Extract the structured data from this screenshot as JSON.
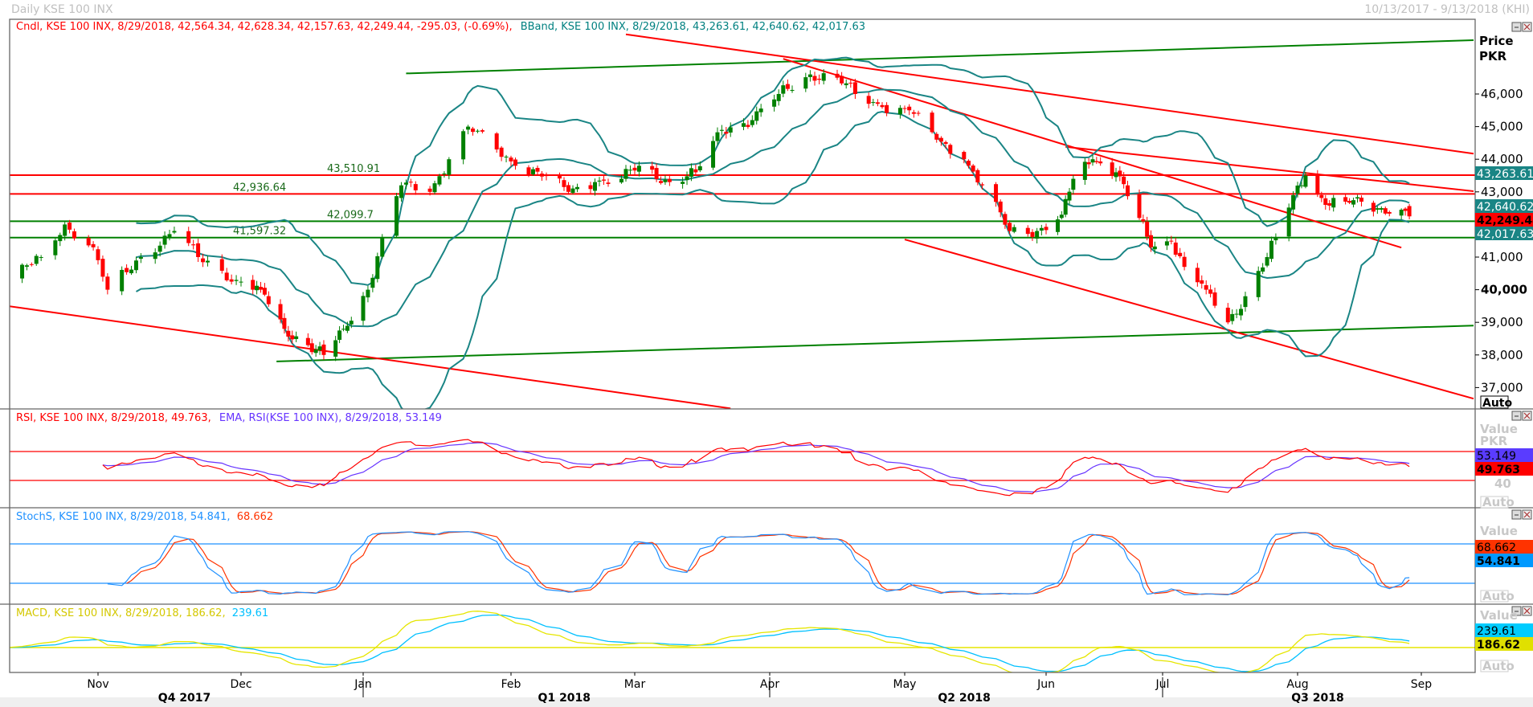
{
  "header": {
    "title": "Daily KSE 100 INX",
    "range": "10/13/2017 - 9/13/2018 (KHI)"
  },
  "legends": {
    "price": {
      "candle": "Cndl, KSE 100 INX, 8/29/2018, 42,564.34, 42,628.34, 42,157.63, 42,249.44, -295.03, (-0.69%),",
      "bband": "BBand, KSE 100 INX, 8/29/2018, 43,263.61, 42,640.62, 42,017.63"
    },
    "rsi": {
      "rsi": "RSI, KSE 100 INX, 8/29/2018, 49.763,",
      "ema": "EMA, RSI(KSE 100 INX), 8/29/2018, 53.149"
    },
    "stoch": {
      "k": "StochS, KSE 100 INX, 8/29/2018, 54.841,",
      "d": "68.662"
    },
    "macd": {
      "macd": "MACD, KSE 100 INX, 8/29/2018, 186.62,",
      "signal": "239.61"
    }
  },
  "axes": {
    "price_label": "Price",
    "currency": "PKR",
    "value_label": "Value",
    "value_currency": "PKR",
    "rsi_tick": "40",
    "auto": "Auto",
    "price_ticks": [
      {
        "value": 46000,
        "label": "46,000"
      },
      {
        "value": 45000,
        "label": "45,000"
      },
      {
        "value": 44000,
        "label": "44,000"
      },
      {
        "value": 43000,
        "label": "43,000"
      },
      {
        "value": 41000,
        "label": "41,000"
      },
      {
        "value": 40000,
        "label": "40,000",
        "bold": true
      },
      {
        "value": 39000,
        "label": "39,000"
      },
      {
        "value": 38000,
        "label": "38,000"
      },
      {
        "value": 37000,
        "label": "37,000"
      }
    ],
    "months": [
      {
        "date": "2017-11-01",
        "label": "Nov"
      },
      {
        "date": "2017-12-01",
        "label": "Dec"
      },
      {
        "date": "2018-01-01",
        "label": "Jan"
      },
      {
        "date": "2018-02-01",
        "label": "Feb"
      },
      {
        "date": "2018-03-01",
        "label": "Mar"
      },
      {
        "date": "2018-04-01",
        "label": "Apr"
      },
      {
        "date": "2018-05-01",
        "label": "May"
      },
      {
        "date": "2018-06-01",
        "label": "Jun"
      },
      {
        "date": "2018-07-01",
        "label": "Jul"
      },
      {
        "date": "2018-08-01",
        "label": "Aug"
      },
      {
        "date": "2018-09-01",
        "label": "Sep"
      }
    ],
    "quarters": [
      {
        "label": "Q4 2017",
        "start": "2017-10-01",
        "end": "2017-12-31"
      },
      {
        "label": "Q1 2018",
        "start": "2018-01-01",
        "end": "2018-03-31"
      },
      {
        "label": "Q2 2018",
        "start": "2018-04-01",
        "end": "2018-06-30"
      },
      {
        "label": "Q3 2018",
        "start": "2018-07-01",
        "end": "2018-09-13"
      }
    ]
  },
  "badges": {
    "bb_upper": "43,263.61",
    "bb_mid": "42,640.62",
    "last": "42,249.44",
    "bb_lower": "42,017.63",
    "ema": "53.149",
    "rsi": "49.763",
    "stoch_d": "68.662",
    "stoch_k": "54.841",
    "signal": "239.61",
    "macd": "186.62"
  },
  "colors": {
    "up": "#008000",
    "down": "#ff0000",
    "bband": "#1a8585",
    "rsi": "#ff0000",
    "ema": "#6633ff",
    "stoch_k": "#1e90ff",
    "stoch_d": "#ff3300",
    "macd": "#e6e600",
    "signal": "#00c0ff",
    "trend_green": "#008000",
    "trend_red": "#ff0000"
  },
  "chart_data": {
    "type": "candlestick",
    "title": "Daily KSE 100 INX",
    "ylabel": "Price PKR",
    "ylim": [
      36345,
      48280
    ],
    "last_candle": {
      "date": "2018-08-29",
      "open": 42564.34,
      "high": 42628.34,
      "low": 42157.63,
      "close": 42249.44,
      "change": -295.03,
      "change_pct": -0.69
    },
    "close_path": [
      [
        "2017-10-13",
        40300
      ],
      [
        "2017-10-20",
        41000
      ],
      [
        "2017-10-25",
        42000
      ],
      [
        "2017-10-31",
        41300
      ],
      [
        "2017-11-03",
        40000
      ],
      [
        "2017-11-10",
        41000
      ],
      [
        "2017-11-17",
        41800
      ],
      [
        "2017-11-22",
        41000
      ],
      [
        "2017-11-30",
        40300
      ],
      [
        "2017-12-06",
        40000
      ],
      [
        "2017-12-12",
        38800
      ],
      [
        "2017-12-18",
        38300
      ],
      [
        "2017-12-22",
        38000
      ],
      [
        "2017-12-27",
        38800
      ],
      [
        "2018-01-02",
        40000
      ],
      [
        "2018-01-05",
        41600
      ],
      [
        "2018-01-09",
        43200
      ],
      [
        "2018-01-15",
        43000
      ],
      [
        "2018-01-19",
        44000
      ],
      [
        "2018-01-23",
        45000
      ],
      [
        "2018-01-29",
        44300
      ],
      [
        "2018-02-02",
        43800
      ],
      [
        "2018-02-09",
        43500
      ],
      [
        "2018-02-14",
        43000
      ],
      [
        "2018-02-20",
        43300
      ],
      [
        "2018-02-26",
        43400
      ],
      [
        "2018-03-02",
        43800
      ],
      [
        "2018-03-09",
        43300
      ],
      [
        "2018-03-15",
        43600
      ],
      [
        "2018-03-21",
        44900
      ],
      [
        "2018-03-28",
        45200
      ],
      [
        "2018-04-03",
        46000
      ],
      [
        "2018-04-10",
        46600
      ],
      [
        "2018-04-16",
        46500
      ],
      [
        "2018-04-20",
        46000
      ],
      [
        "2018-04-26",
        45600
      ],
      [
        "2018-05-02",
        45500
      ],
      [
        "2018-05-08",
        44600
      ],
      [
        "2018-05-14",
        44000
      ],
      [
        "2018-05-18",
        43200
      ],
      [
        "2018-05-24",
        41800
      ],
      [
        "2018-05-30",
        41800
      ],
      [
        "2018-06-05",
        42300
      ],
      [
        "2018-06-08",
        43400
      ],
      [
        "2018-06-13",
        44000
      ],
      [
        "2018-06-19",
        43600
      ],
      [
        "2018-06-25",
        42200
      ],
      [
        "2018-06-28",
        41300
      ],
      [
        "2018-07-03",
        41500
      ],
      [
        "2018-07-06",
        40700
      ],
      [
        "2018-07-11",
        40000
      ],
      [
        "2018-07-16",
        39000
      ],
      [
        "2018-07-20",
        39800
      ],
      [
        "2018-07-25",
        41000
      ],
      [
        "2018-07-27",
        41600
      ],
      [
        "2018-07-31",
        42900
      ],
      [
        "2018-08-03",
        43500
      ],
      [
        "2018-08-08",
        42600
      ],
      [
        "2018-08-13",
        42700
      ],
      [
        "2018-08-17",
        42700
      ],
      [
        "2018-08-22",
        42500
      ],
      [
        "2018-08-29",
        42249.44
      ]
    ],
    "levels": [
      {
        "value": 43510.91,
        "label": "43,510.91",
        "color": "red",
        "label_date": "2018-01-01"
      },
      {
        "value": 42936.64,
        "label": "42,936.64",
        "color": "red",
        "label_date": "2017-12-01"
      },
      {
        "value": 42099.7,
        "label": "42,099.7",
        "color": "green",
        "label_date": "2018-01-01"
      },
      {
        "value": 41597.32,
        "label": "41,597.32",
        "color": "green",
        "label_date": "2017-12-01"
      }
    ],
    "trendlines": [
      {
        "color": "green",
        "from": [
          "2018-01-10",
          46630
        ],
        "to": [
          "2018-09-14",
          47650
        ]
      },
      {
        "color": "green",
        "from": [
          "2017-12-10",
          37800
        ],
        "to": [
          "2018-09-14",
          38900
        ]
      },
      {
        "color": "red",
        "from": [
          "2017-10-13",
          39500
        ],
        "to": [
          "2018-03-23",
          36360
        ]
      },
      {
        "color": "red",
        "from": [
          "2018-02-27",
          47830
        ],
        "to": [
          "2018-09-14",
          44170
        ]
      },
      {
        "color": "red",
        "from": [
          "2018-04-04",
          47080
        ],
        "to": [
          "2018-08-27",
          41290
        ]
      },
      {
        "color": "red",
        "from": [
          "2018-06-06",
          44380
        ],
        "to": [
          "2018-09-14",
          43020
        ]
      },
      {
        "color": "red",
        "from": [
          "2018-05-01",
          41540
        ],
        "to": [
          "2018-09-14",
          36660
        ]
      }
    ],
    "indicators": {
      "bband": {
        "period": 20,
        "stdev": 2,
        "last": [
          43263.61,
          42640.62,
          42017.63
        ]
      },
      "rsi": {
        "period": 14,
        "levels": [
          30,
          70
        ],
        "last": 49.763,
        "ema_last": 53.149
      },
      "stoch": {
        "levels": [
          20,
          80
        ],
        "k_last": 54.841,
        "d_last": 68.662
      },
      "macd": {
        "fast": 12,
        "slow": 26,
        "signal": 9,
        "macd_last": 186.62,
        "signal_last": 239.61
      }
    }
  }
}
